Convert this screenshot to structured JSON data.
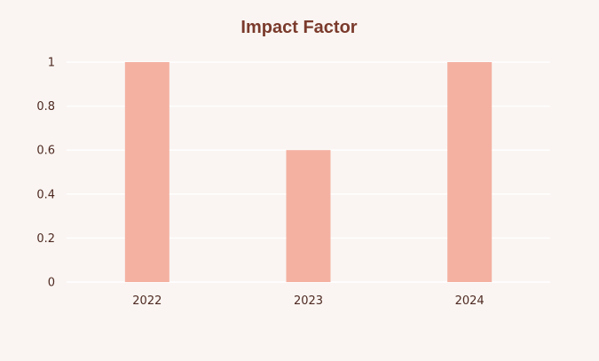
{
  "chart_data": {
    "type": "bar",
    "title": "Impact Factor",
    "categories": [
      "2022",
      "2023",
      "2024"
    ],
    "values": [
      1,
      0.6,
      1
    ],
    "xlabel": "",
    "ylabel": "",
    "ylim": [
      0,
      1
    ],
    "yticks": [
      "0",
      "0.2",
      "0.4",
      "0.6",
      "0.8",
      "1"
    ],
    "grid": true,
    "legend": "none"
  },
  "colors": {
    "bar": "#f4b1a2",
    "title": "#7a3a2c",
    "tick": "#4e2a22",
    "background": "#faf5f2",
    "grid": "#ffffff"
  }
}
